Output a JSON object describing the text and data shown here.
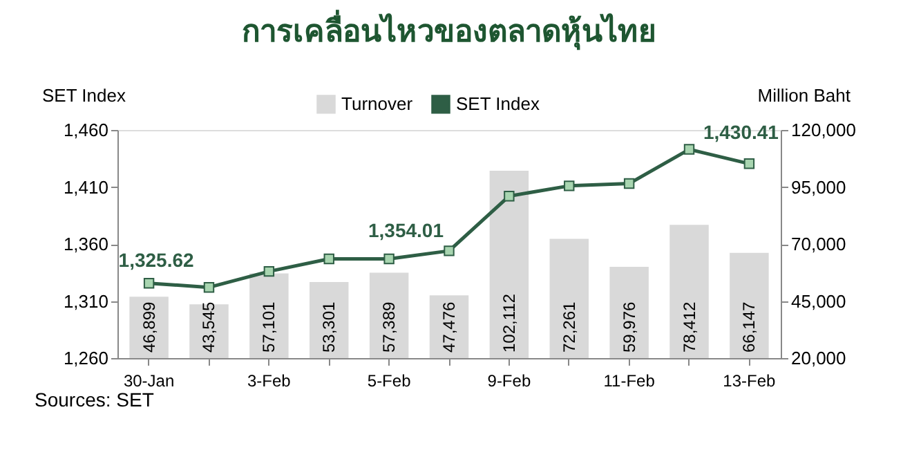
{
  "chart_data": {
    "type": "bar",
    "title": "การเคลื่อนไหวของตลาดหุ้นไทย",
    "categories": [
      "30-Jan",
      null,
      "3-Feb",
      null,
      "5-Feb",
      null,
      "9-Feb",
      null,
      "11-Feb",
      null,
      "13-Feb"
    ],
    "series": [
      {
        "name": "Turnover",
        "axis": "y2",
        "color": "#d9d9d9",
        "values": [
          46899,
          43545,
          57101,
          53301,
          57389,
          47476,
          102112,
          72261,
          59976,
          78412,
          66147
        ],
        "value_labels": [
          "46,899",
          "43,545",
          "57,101",
          "53,301",
          "57,389",
          "47,476",
          "102,112",
          "72,261",
          "59,976",
          "78,412",
          "66,147"
        ]
      },
      {
        "name": "SET Index",
        "type": "line",
        "color": "#2e5e45",
        "marker": "square",
        "values": [
          1325.62,
          1322,
          1336,
          1347,
          1347,
          1354.01,
          1402,
          1411,
          1413,
          1443,
          1430.41
        ],
        "value_labels": [
          "1,325.62",
          null,
          null,
          null,
          null,
          "1,354.01",
          null,
          null,
          null,
          null,
          "1,430.41"
        ]
      }
    ],
    "ylabel": "SET Index",
    "y2label": "Million Baht",
    "ylim": [
      1260,
      1460
    ],
    "yticks": [
      {
        "value": 1260,
        "label": "1,260"
      },
      {
        "value": 1310,
        "label": "1,310"
      },
      {
        "value": 1360,
        "label": "1,360"
      },
      {
        "value": 1410,
        "label": "1,410"
      },
      {
        "value": 1460,
        "label": "1,460"
      }
    ],
    "y2lim": [
      20000,
      120000
    ],
    "y2ticks": [
      {
        "value": 20000,
        "label": "20,000"
      },
      {
        "value": 45000,
        "label": "45,000"
      },
      {
        "value": 70000,
        "label": "70,000"
      },
      {
        "value": 95000,
        "label": "95,000"
      },
      {
        "value": 120000,
        "label": "120,000"
      }
    ],
    "legend": "top",
    "grid": false,
    "annotations": [
      "Sources: SET"
    ]
  }
}
